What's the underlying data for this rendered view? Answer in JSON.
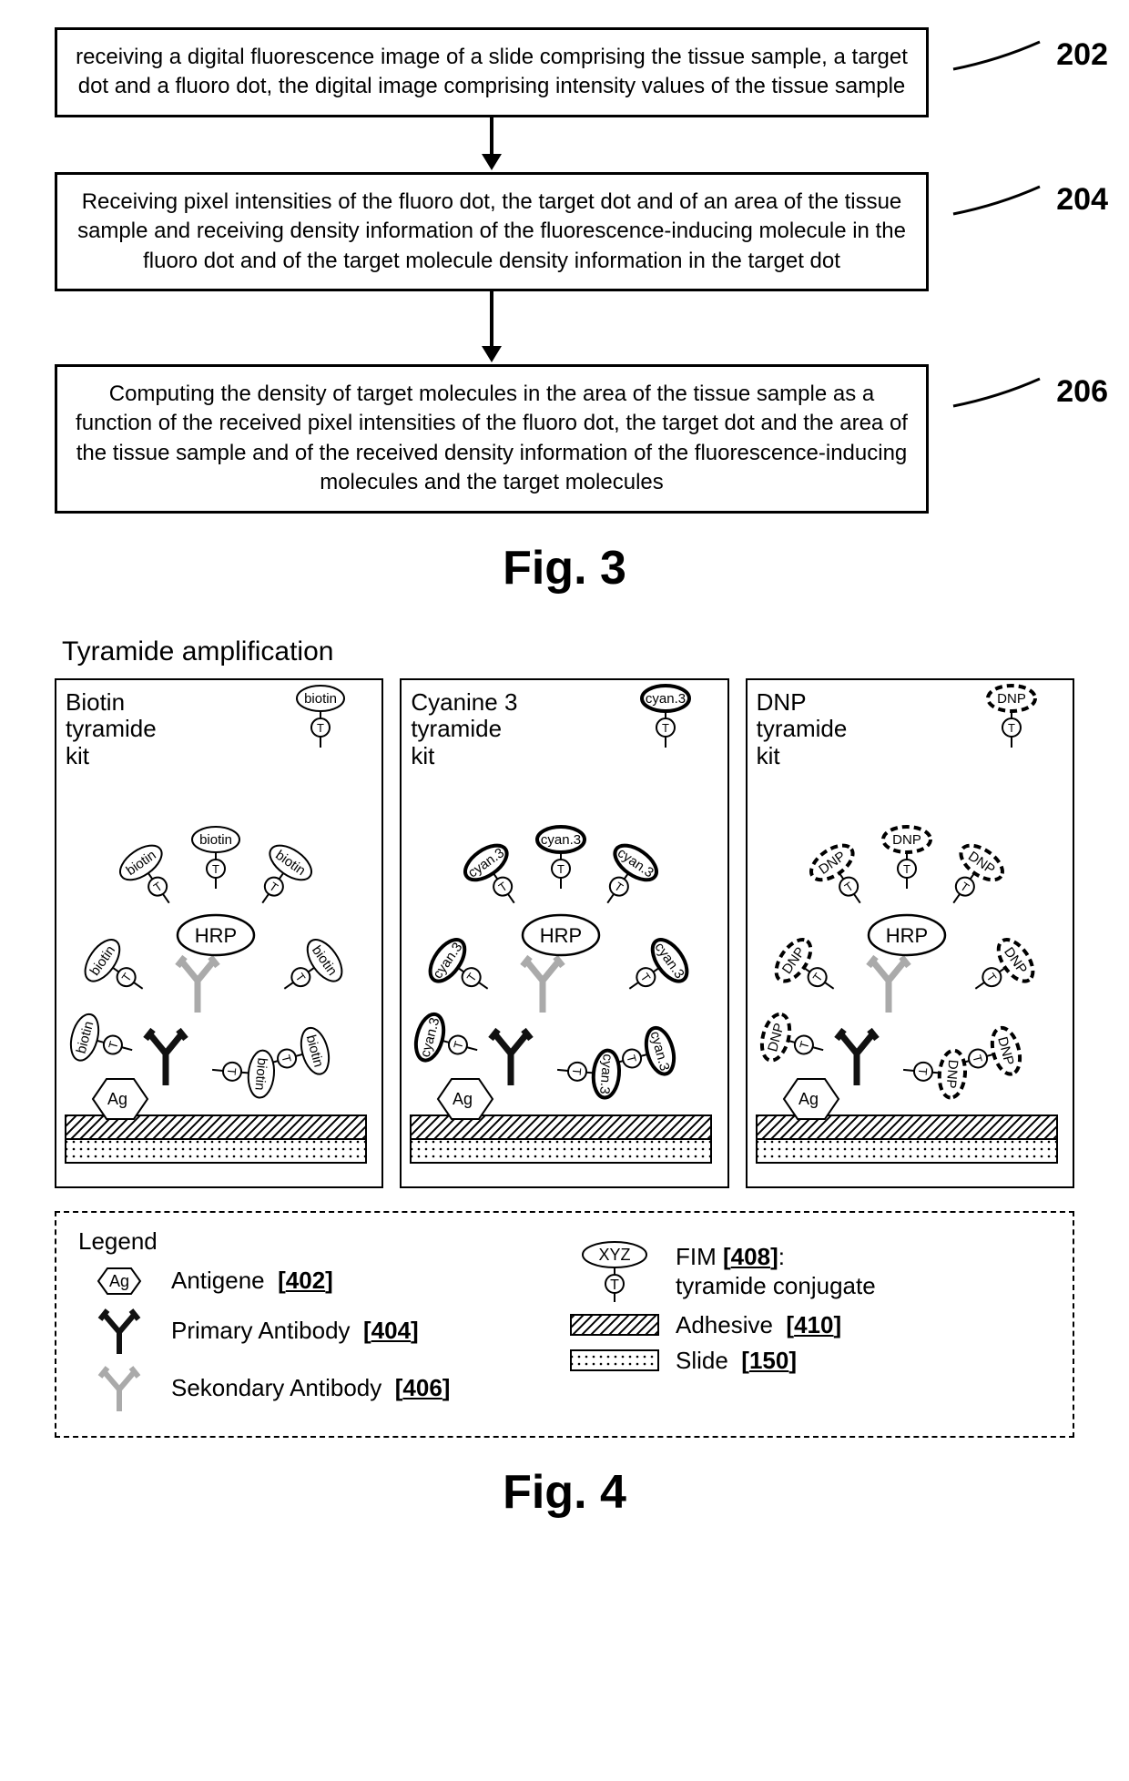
{
  "fig3": {
    "boxes": [
      {
        "id": "b1",
        "text": "receiving a digital fluorescence image of a slide comprising the tissue sample, a target dot and a fluoro dot,  the digital image comprising intensity values of the tissue sample",
        "ref": "202"
      },
      {
        "id": "b2",
        "text": "Receiving pixel intensities of the fluoro dot, the target dot and of an area of the tissue sample and receiving density information of the fluorescence-inducing molecule in the fluoro dot and of the target molecule density information in the target dot",
        "ref": "204"
      },
      {
        "id": "b3",
        "text": "Computing the density of target molecules in the area of the tissue sample as a function of the received pixel intensities of the fluoro dot, the target dot and the area of the tissue sample and of the received density information of the fluorescence-inducing molecules and the target molecules",
        "ref": "206"
      }
    ],
    "label": "Fig. 3",
    "arrow": {
      "length": 45,
      "stroke": "#000",
      "head_size": 18
    },
    "box_border": "#000"
  },
  "fig4": {
    "section_title": "Tyramide amplification",
    "label": "Fig. 4",
    "panels": [
      {
        "title_lines": [
          "Biotin",
          "tyramide",
          "kit"
        ],
        "tag": "biotin",
        "tag_stroke_width": 2,
        "dash": "none"
      },
      {
        "title_lines": [
          "Cyanine 3",
          "tyramide",
          "kit"
        ],
        "tag": "cyan.3",
        "tag_stroke_width": 4,
        "dash": "none"
      },
      {
        "title_lines": [
          "DNP",
          "tyramide",
          "kit"
        ],
        "tag": "DNP",
        "tag_stroke_width": 4,
        "dash": "8 5"
      }
    ],
    "core_labels": {
      "hrp": "HRP",
      "ag": "Ag",
      "t": "T"
    },
    "legend": {
      "title": "Legend",
      "items_left": [
        {
          "label": "Antigene",
          "ref": "402",
          "type": "hexagon",
          "txt": "Ag"
        },
        {
          "label": "Primary Antibody",
          "ref": "404",
          "type": "antibody",
          "color": "#111"
        },
        {
          "label": "Sekondary Antibody",
          "ref": "406",
          "type": "antibody",
          "color": "#aaa"
        }
      ],
      "items_right": [
        {
          "label_lines": [
            "FIM ",
            ":",
            "tyramide conjugate"
          ],
          "ref": "408",
          "type": "fim",
          "txt": "XYZ"
        },
        {
          "label": "Adhesive",
          "ref": "410",
          "type": "hatch"
        },
        {
          "label": "Slide",
          "ref": "150",
          "type": "dots"
        }
      ]
    },
    "colors": {
      "stroke": "#000",
      "background": "#fff",
      "antibody_primary": "#111",
      "antibody_secondary": "#aaa",
      "hatch_fill": "#fff",
      "dot_fill": "#fff"
    }
  }
}
